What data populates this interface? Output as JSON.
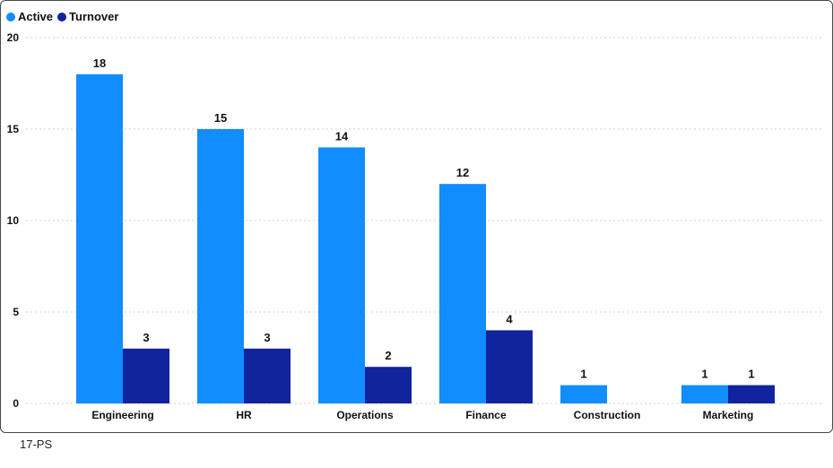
{
  "chart_data": {
    "type": "bar",
    "categories": [
      "Engineering",
      "HR",
      "Operations",
      "Finance",
      "Construction",
      "Marketing"
    ],
    "series": [
      {
        "name": "Active",
        "color": "#118DFF",
        "values": [
          18,
          15,
          14,
          12,
          1,
          1
        ]
      },
      {
        "name": "Turnover",
        "color": "#12239E",
        "values": [
          3,
          3,
          2,
          4,
          null,
          1
        ]
      }
    ],
    "ylim": [
      0,
      20
    ],
    "yticks": [
      0,
      5,
      10,
      15,
      20
    ],
    "grid": true,
    "legend_position": "top-left",
    "data_labels": true
  },
  "footer": {
    "code": "17-PS"
  }
}
